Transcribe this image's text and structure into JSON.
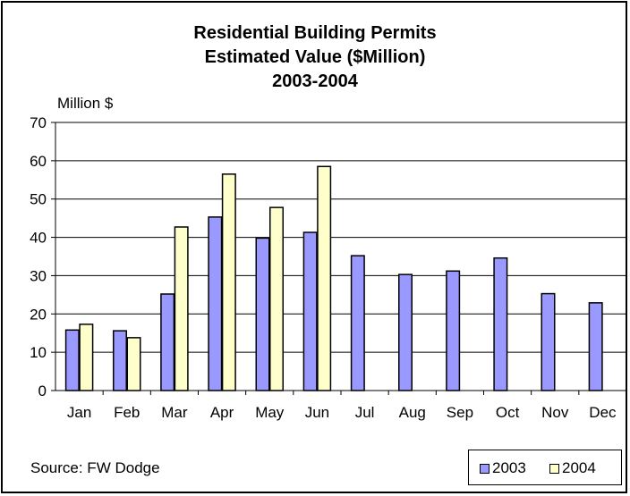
{
  "chart_data": {
    "type": "bar",
    "title": [
      "Residential Building Permits",
      "Estimated Value ($Million)",
      "2003-2004"
    ],
    "ylabel": "Million $",
    "ylim": [
      0,
      70
    ],
    "yticks": [
      0,
      10,
      20,
      30,
      40,
      50,
      60,
      70
    ],
    "categories": [
      "Jan",
      "Feb",
      "Mar",
      "Apr",
      "May",
      "Jun",
      "Jul",
      "Aug",
      "Sep",
      "Oct",
      "Nov",
      "Dec"
    ],
    "series": [
      {
        "name": "2003",
        "color": "#9999ff",
        "values": [
          15.8,
          15.6,
          25.2,
          45.3,
          39.8,
          41.3,
          35.2,
          30.3,
          31.2,
          34.6,
          25.3,
          22.9
        ]
      },
      {
        "name": "2004",
        "color": "#ffffcc",
        "values": [
          17.3,
          13.8,
          42.7,
          56.5,
          47.8,
          58.5,
          null,
          null,
          null,
          null,
          null,
          null
        ]
      }
    ],
    "grid": true,
    "legend_position": "bottom-right"
  },
  "source": "Source: FW Dodge"
}
